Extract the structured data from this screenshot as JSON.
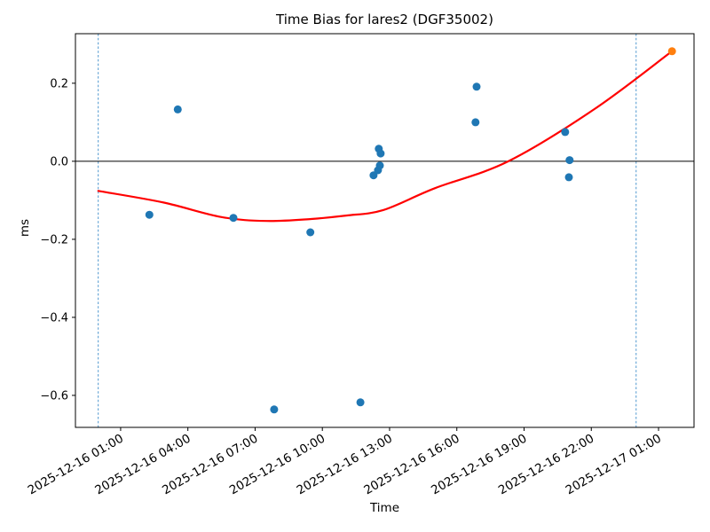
{
  "chart_data": {
    "type": "scatter",
    "title": "Time Bias for lares2 (DGF35002)",
    "xlabel": "Time",
    "ylabel": "ms",
    "grid": false,
    "legend": "none",
    "xlim": [
      "2025-12-15 22:59",
      "2025-12-17 02:35"
    ],
    "ylim": [
      -0.682,
      0.327
    ],
    "x_ticks": [
      "2025-12-16 01:00",
      "2025-12-16 04:00",
      "2025-12-16 07:00",
      "2025-12-16 10:00",
      "2025-12-16 13:00",
      "2025-12-16 16:00",
      "2025-12-16 19:00",
      "2025-12-16 22:00",
      "2025-12-17 01:00"
    ],
    "y_ticks": [
      {
        "value": 0.2,
        "label": "0.2"
      },
      {
        "value": 0.0,
        "label": "0.0"
      },
      {
        "value": -0.2,
        "label": "−0.2"
      },
      {
        "value": -0.4,
        "label": "−0.4"
      },
      {
        "value": -0.6,
        "label": "−0.6"
      }
    ],
    "series": [
      {
        "name": "observations",
        "color": "#1f77b4",
        "marker": "circle",
        "points": [
          {
            "time": "2025-12-16 02:17",
            "ms": -0.137
          },
          {
            "time": "2025-12-16 03:33",
            "ms": 0.133
          },
          {
            "time": "2025-12-16 06:02",
            "ms": -0.145
          },
          {
            "time": "2025-12-16 07:51",
            "ms": -0.636
          },
          {
            "time": "2025-12-16 09:28",
            "ms": -0.182
          },
          {
            "time": "2025-12-16 11:42",
            "ms": -0.618
          },
          {
            "time": "2025-12-16 12:17",
            "ms": -0.036
          },
          {
            "time": "2025-12-16 12:29",
            "ms": -0.023
          },
          {
            "time": "2025-12-16 12:34",
            "ms": -0.011
          },
          {
            "time": "2025-12-16 12:31",
            "ms": 0.032
          },
          {
            "time": "2025-12-16 12:36",
            "ms": 0.02
          },
          {
            "time": "2025-12-16 16:50",
            "ms": 0.1
          },
          {
            "time": "2025-12-16 16:53",
            "ms": 0.191
          },
          {
            "time": "2025-12-16 20:50",
            "ms": 0.075
          },
          {
            "time": "2025-12-16 21:02",
            "ms": 0.003
          },
          {
            "time": "2025-12-16 21:00",
            "ms": -0.041
          }
        ]
      },
      {
        "name": "latest-observation",
        "color": "#ff7f0e",
        "marker": "circle",
        "points": [
          {
            "time": "2025-12-17 01:36",
            "ms": 0.282
          }
        ]
      }
    ],
    "fit_curve": {
      "name": "polynomial-fit",
      "color": "#ff0000",
      "width": 2.2,
      "points": [
        {
          "time": "2025-12-16 00:00",
          "ms": -0.076
        },
        {
          "time": "2025-12-16 02:56",
          "ms": -0.106
        },
        {
          "time": "2025-12-16 05:30",
          "ms": -0.143
        },
        {
          "time": "2025-12-16 07:30",
          "ms": -0.153
        },
        {
          "time": "2025-12-16 09:30",
          "ms": -0.148
        },
        {
          "time": "2025-12-16 11:04",
          "ms": -0.139
        },
        {
          "time": "2025-12-16 12:43",
          "ms": -0.125
        },
        {
          "time": "2025-12-16 15:01",
          "ms": -0.069
        },
        {
          "time": "2025-12-16 18:18",
          "ms": 0.0
        },
        {
          "time": "2025-12-16 22:09",
          "ms": 0.134
        },
        {
          "time": "2025-12-17 01:36",
          "ms": 0.282
        }
      ]
    },
    "boundary_lines": {
      "color": "#4f97cf",
      "style": "dashed",
      "times": [
        "2025-12-16 00:00",
        "2025-12-17 00:00"
      ]
    },
    "zero_line": {
      "value": 0.0,
      "color": "#000000"
    }
  }
}
